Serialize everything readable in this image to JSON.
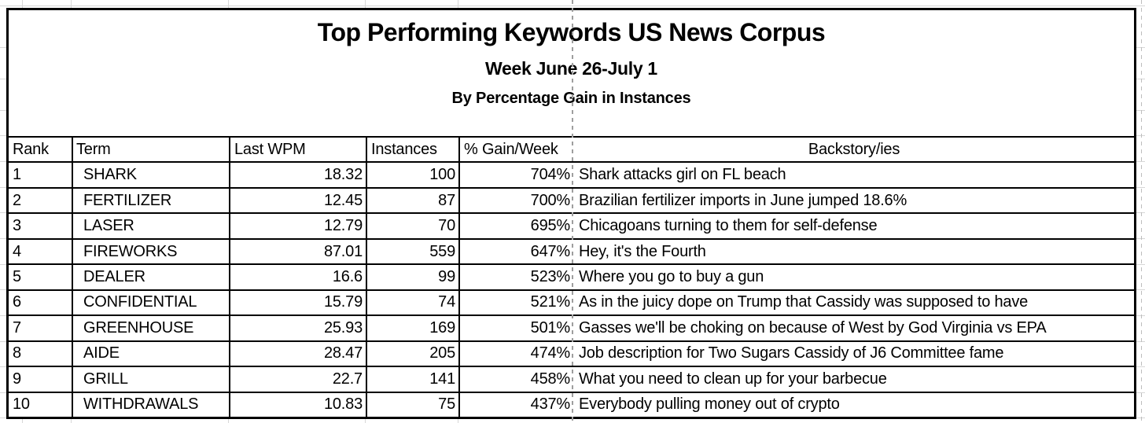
{
  "title": {
    "main": "Top Performing Keywords US News Corpus",
    "subtitle": "Week June 26-July 1",
    "subtitle2": "By Percentage Gain in Instances"
  },
  "table": {
    "columns": [
      {
        "key": "rank",
        "label": "Rank"
      },
      {
        "key": "term",
        "label": "Term"
      },
      {
        "key": "last_wpm",
        "label": "Last WPM"
      },
      {
        "key": "instances",
        "label": "Instances"
      },
      {
        "key": "gain",
        "label": "% Gain/Week"
      },
      {
        "key": "backstory",
        "label": "Backstory/ies"
      }
    ],
    "rows": [
      {
        "rank": "1",
        "term": "SHARK",
        "last_wpm": "18.32",
        "instances": "100",
        "gain": "704%",
        "backstory": "Shark attacks girl on FL beach"
      },
      {
        "rank": "2",
        "term": "FERTILIZER",
        "last_wpm": "12.45",
        "instances": "87",
        "gain": "700%",
        "backstory": "Brazilian fertilizer imports in June jumped 18.6%"
      },
      {
        "rank": "3",
        "term": "LASER",
        "last_wpm": "12.79",
        "instances": "70",
        "gain": "695%",
        "backstory": "Chicagoans turning to them for self-defense"
      },
      {
        "rank": "4",
        "term": "FIREWORKS",
        "last_wpm": "87.01",
        "instances": "559",
        "gain": "647%",
        "backstory": "Hey, it's the Fourth"
      },
      {
        "rank": "5",
        "term": "DEALER",
        "last_wpm": "16.6",
        "instances": "99",
        "gain": "523%",
        "backstory": "Where you go to buy a gun"
      },
      {
        "rank": "6",
        "term": "CONFIDENTIAL",
        "last_wpm": "15.79",
        "instances": "74",
        "gain": "521%",
        "backstory": "As in the juicy dope on Trump that Cassidy was supposed to have"
      },
      {
        "rank": "7",
        "term": "GREENHOUSE",
        "last_wpm": "25.93",
        "instances": "169",
        "gain": "501%",
        "backstory": "Gasses we'll be choking on because of West by God Virginia vs EPA"
      },
      {
        "rank": "8",
        "term": "AIDE",
        "last_wpm": "28.47",
        "instances": "205",
        "gain": "474%",
        "backstory": "Job description for Two Sugars Cassidy of J6 Committee fame"
      },
      {
        "rank": "9",
        "term": "GRILL",
        "last_wpm": "22.7",
        "instances": "141",
        "gain": "458%",
        "backstory": "What you need to clean up for your barbecue"
      },
      {
        "rank": "10",
        "term": "WITHDRAWALS",
        "last_wpm": "10.83",
        "instances": "75",
        "gain": "437%",
        "backstory": "Everybody pulling money out of crypto"
      }
    ]
  },
  "colors": {
    "text": "#000000",
    "border": "#000000",
    "background": "#ffffff",
    "gridline": "#d7d7d7",
    "page_break": "#9e9e9e"
  }
}
